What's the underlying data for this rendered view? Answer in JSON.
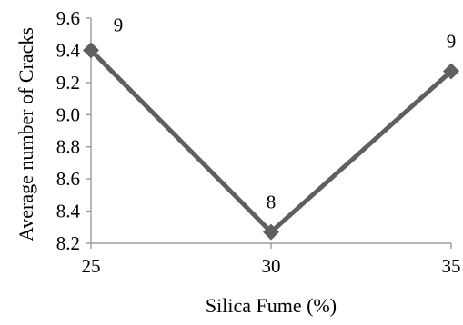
{
  "chart_data": {
    "type": "line",
    "title": "",
    "xlabel": "Silica Fume (%)",
    "ylabel": "Average number of Cracks",
    "categories": [
      "25",
      "30",
      "35"
    ],
    "series": [
      {
        "values": [
          9.4,
          8.27,
          9.27
        ],
        "data_labels": [
          "9",
          "8",
          "9"
        ],
        "color": "#5f5f5f",
        "marker": "diamond"
      }
    ],
    "ylim": [
      8.2,
      9.6
    ],
    "yticks": [
      "8.2",
      "8.4",
      "8.6",
      "8.8",
      "9.0",
      "9.2",
      "9.4",
      "9.6"
    ],
    "grid": false,
    "legend": "none"
  }
}
